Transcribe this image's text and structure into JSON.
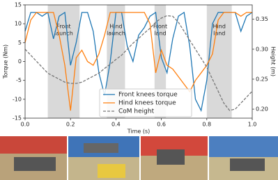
{
  "chart_data": {
    "type": "line",
    "x_label": "Time (s)",
    "y_label": "Torque (Nm)",
    "y2_label": "Height (m)",
    "x": [
      0,
      0.025,
      0.05,
      0.075,
      0.1,
      0.125,
      0.15,
      0.175,
      0.2,
      0.225,
      0.25,
      0.275,
      0.3,
      0.325,
      0.35,
      0.375,
      0.4,
      0.425,
      0.45,
      0.475,
      0.5,
      0.525,
      0.55,
      0.575,
      0.6,
      0.625,
      0.65,
      0.675,
      0.7,
      0.725,
      0.75,
      0.775,
      0.8,
      0.825,
      0.85,
      0.875,
      0.9,
      0.925,
      0.95,
      0.975,
      1
    ],
    "series": [
      {
        "name": "Front knees torque",
        "color": "#1f77b4",
        "linestyle": "solid",
        "values": [
          8,
          13,
          13,
          12,
          13,
          6,
          12,
          13,
          -1,
          5,
          13,
          13,
          8,
          -3,
          -9,
          0,
          13,
          13,
          4,
          0,
          7,
          9,
          12,
          13,
          1,
          -3,
          6,
          12,
          13,
          4,
          -10,
          -13,
          -5,
          10,
          13,
          13,
          13,
          13,
          8,
          12,
          13
        ]
      },
      {
        "name": "Hind knees torque",
        "color": "#ff7f0e",
        "linestyle": "solid",
        "values": [
          5,
          11,
          13,
          13,
          13,
          13,
          7,
          -1,
          -13,
          1,
          3,
          0,
          -1,
          2,
          7,
          13,
          13,
          13,
          13,
          13,
          13,
          13,
          10,
          -3,
          3,
          -1,
          -2,
          -4,
          -6,
          -8,
          -5,
          -3,
          -1,
          2,
          11,
          13,
          13,
          13,
          12,
          13,
          13
        ]
      },
      {
        "name": "CoM height",
        "color": "#777777",
        "linestyle": "dashed",
        "axis": "y2",
        "values": [
          0.3,
          0.29,
          0.28,
          0.27,
          0.26,
          0.255,
          0.25,
          0.245,
          0.243,
          0.243,
          0.245,
          0.25,
          0.255,
          0.26,
          0.268,
          0.275,
          0.283,
          0.29,
          0.3,
          0.31,
          0.318,
          0.327,
          0.335,
          0.345,
          0.352,
          0.356,
          0.355,
          0.345,
          0.33,
          0.315,
          0.3,
          0.285,
          0.27,
          0.25,
          0.23,
          0.21,
          0.198,
          0.2,
          0.21,
          0.22,
          0.23
        ]
      }
    ],
    "xlim": [
      0,
      1
    ],
    "xticks": [
      {
        "value": 0,
        "label": "0.0"
      },
      0.2,
      0.4,
      0.6,
      0.8,
      {
        "value": 1,
        "label": "1.0"
      }
    ],
    "ylim": [
      -15,
      15
    ],
    "yticks": [
      -15,
      -10,
      -5,
      0,
      5,
      10,
      15
    ],
    "y2lim": [
      0.185,
      0.374
    ],
    "y2ticks": [
      {
        "value": 0.2,
        "label": "0.20"
      },
      0.25,
      {
        "value": 0.3,
        "label": "0.30"
      },
      0.35
    ],
    "shaded_regions": [
      {
        "start": 0.1,
        "end": 0.24,
        "label": [
          "Front",
          "launch"
        ]
      },
      {
        "start": 0.36,
        "end": 0.44,
        "label": [
          "Hind",
          "launch"
        ]
      },
      {
        "start": 0.57,
        "end": 0.62,
        "label": [
          "Front",
          "land"
        ]
      },
      {
        "start": 0.8,
        "end": 0.91,
        "label": [
          "Hind",
          "land"
        ]
      }
    ],
    "shade_color": "#d9d9d9",
    "legend": "lower center"
  }
}
